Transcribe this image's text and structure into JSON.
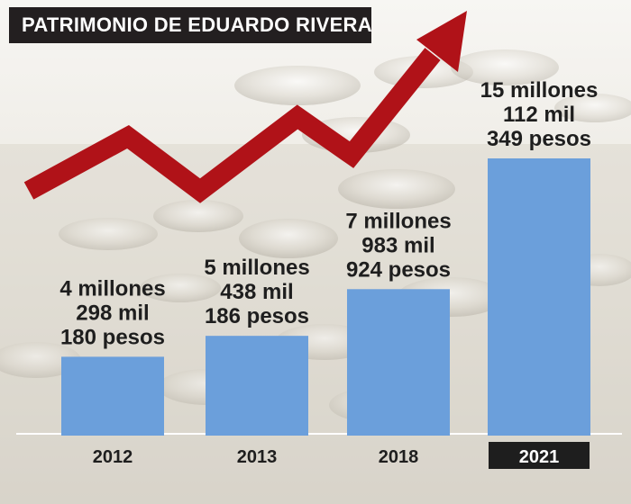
{
  "title": "PATRIMONIO DE EDUARDO RIVERA",
  "colors": {
    "bar": "#6b9fdb",
    "arrow": "#b01218",
    "title_bg": "#231f20",
    "label_text": "#1e1e1e",
    "highlight_bg": "#1e1e1e"
  },
  "chart_data": {
    "type": "bar",
    "title": "PATRIMONIO DE EDUARDO RIVERA",
    "categories": [
      "2012",
      "2013",
      "2018",
      "2021"
    ],
    "values": [
      4298180,
      5438186,
      7983924,
      15112349
    ],
    "value_labels": [
      [
        "4 millones",
        "298 mil",
        "180 pesos"
      ],
      [
        "5 millones",
        "438 mil",
        "186 pesos"
      ],
      [
        "7 millones",
        "983 mil",
        "924 pesos"
      ],
      [
        "15 millones",
        "112 mil",
        "349 pesos"
      ]
    ],
    "highlighted_category": "2021",
    "xlabel": "",
    "ylabel": "",
    "grid": false,
    "legend": "none"
  }
}
